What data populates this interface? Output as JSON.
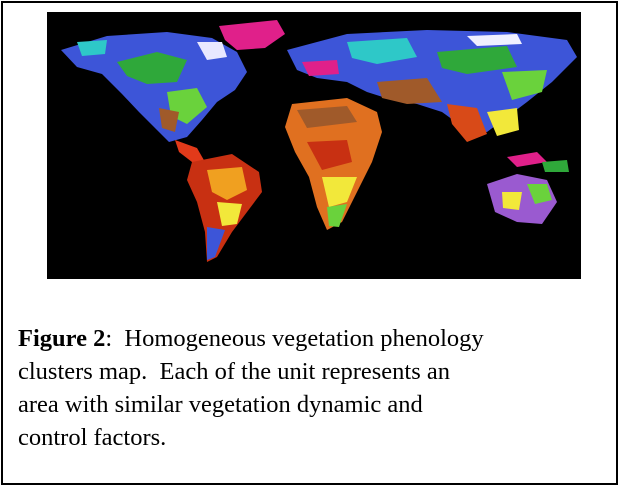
{
  "figure": {
    "label": "Figure 2",
    "caption_lines": [
      ":  Homogeneous vegetation phenology",
      "clusters map.  Each of the unit represents an",
      "area with similar vegetation dynamic and",
      "control factors."
    ]
  }
}
